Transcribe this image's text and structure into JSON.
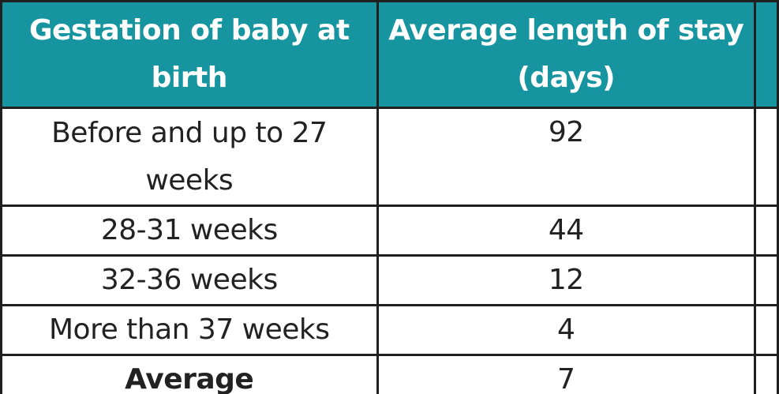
{
  "table": {
    "headers": [
      "Gestation of baby at birth",
      "Average length of stay (days)"
    ],
    "rows": [
      {
        "gestation": "Before and up to 27 weeks",
        "average_stay": "92"
      },
      {
        "gestation": "28-31 weeks",
        "average_stay": "44"
      },
      {
        "gestation": "32-36 weeks",
        "average_stay": "12"
      },
      {
        "gestation": "More than 37 weeks",
        "average_stay": "4"
      },
      {
        "gestation": "Average",
        "average_stay": "7"
      }
    ]
  },
  "colors": {
    "header_background": "#1694a0",
    "header_text": "#ffffff",
    "body_text": "#222222",
    "border": "#1f1f1f"
  }
}
